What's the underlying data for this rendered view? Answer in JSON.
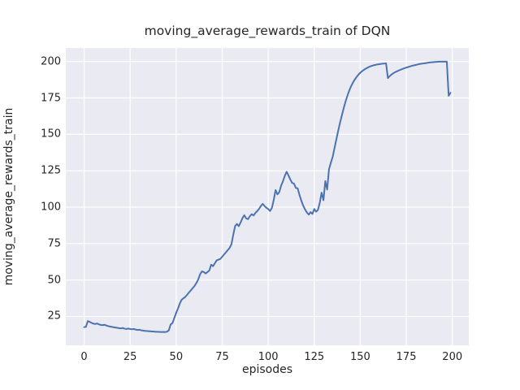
{
  "chart_data": {
    "type": "line",
    "title": "moving_average_rewards_train of DQN",
    "xlabel": "episodes",
    "ylabel": "moving_average_rewards_train",
    "x_is_index": true,
    "x_range": [
      0,
      199
    ],
    "xlim": [
      -9.95,
      208.95
    ],
    "ylim": [
      5.2,
      209.3
    ],
    "xticks": [
      0,
      25,
      50,
      75,
      100,
      125,
      150,
      175,
      200
    ],
    "yticks": [
      25,
      50,
      75,
      100,
      125,
      150,
      175,
      200
    ],
    "grid": true,
    "legend": "none",
    "colors": {
      "line": "#4c72b0",
      "axes_background": "#eaeaf2",
      "gridline": "#ffffff",
      "text": "#262626",
      "figure_background": "#ffffff"
    },
    "series": [
      {
        "name": "moving_average_rewards_train",
        "values": [
          17.7,
          17.9,
          21.8,
          21.3,
          20.6,
          20.1,
          19.8,
          20.2,
          19.6,
          19.2,
          19.0,
          19.3,
          18.8,
          18.4,
          18.1,
          17.9,
          17.6,
          17.4,
          17.2,
          17.0,
          16.8,
          17.1,
          16.6,
          16.4,
          16.7,
          16.4,
          16.2,
          16.4,
          16.0,
          15.7,
          15.9,
          15.5,
          15.3,
          15.1,
          15.0,
          14.9,
          14.8,
          14.7,
          14.6,
          14.5,
          14.5,
          14.4,
          14.3,
          14.4,
          14.3,
          14.5,
          15.5,
          19.5,
          20.5,
          24.0,
          27.5,
          30.5,
          34.0,
          36.5,
          37.5,
          38.5,
          40.0,
          41.5,
          43.0,
          44.5,
          46.0,
          48.0,
          50.5,
          54.0,
          56.0,
          55.5,
          54.5,
          55.5,
          56.5,
          60.5,
          59.5,
          61.5,
          63.5,
          64.0,
          64.5,
          66.0,
          67.5,
          69.0,
          70.5,
          72.0,
          74.5,
          81.0,
          87.0,
          88.5,
          87.0,
          89.5,
          92.5,
          94.5,
          92.3,
          91.8,
          93.8,
          95.2,
          94.3,
          96.0,
          97.3,
          98.8,
          100.8,
          102.3,
          100.8,
          99.6,
          98.7,
          97.4,
          99.5,
          105.0,
          111.8,
          108.8,
          110.3,
          114.8,
          117.8,
          121.5,
          124.3,
          121.8,
          119.0,
          116.6,
          116.2,
          113.2,
          112.9,
          108.3,
          104.4,
          101.0,
          98.4,
          96.4,
          94.9,
          96.6,
          95.4,
          98.7,
          96.9,
          98.1,
          103.0,
          110.0,
          104.8,
          117.9,
          112.1,
          126.0,
          130.5,
          134.5,
          140.5,
          146.5,
          152.5,
          158.0,
          163.0,
          168.0,
          172.5,
          176.5,
          180.0,
          183.0,
          185.5,
          187.6,
          189.4,
          191.0,
          192.3,
          193.4,
          194.3,
          195.1,
          195.8,
          196.4,
          196.9,
          197.3,
          197.6,
          197.9,
          198.1,
          198.3,
          198.5,
          198.6,
          198.7,
          188.6,
          190.0,
          191.1,
          192.0,
          192.7,
          193.3,
          193.9,
          194.4,
          194.9,
          195.4,
          195.8,
          196.2,
          196.6,
          197.0,
          197.3,
          197.6,
          197.9,
          198.2,
          198.4,
          198.6,
          198.8,
          199.0,
          199.2,
          199.4,
          199.5,
          199.6,
          199.7,
          199.8,
          199.9,
          199.9,
          199.9,
          199.9,
          199.9,
          176.5,
          178.5
        ]
      }
    ]
  }
}
